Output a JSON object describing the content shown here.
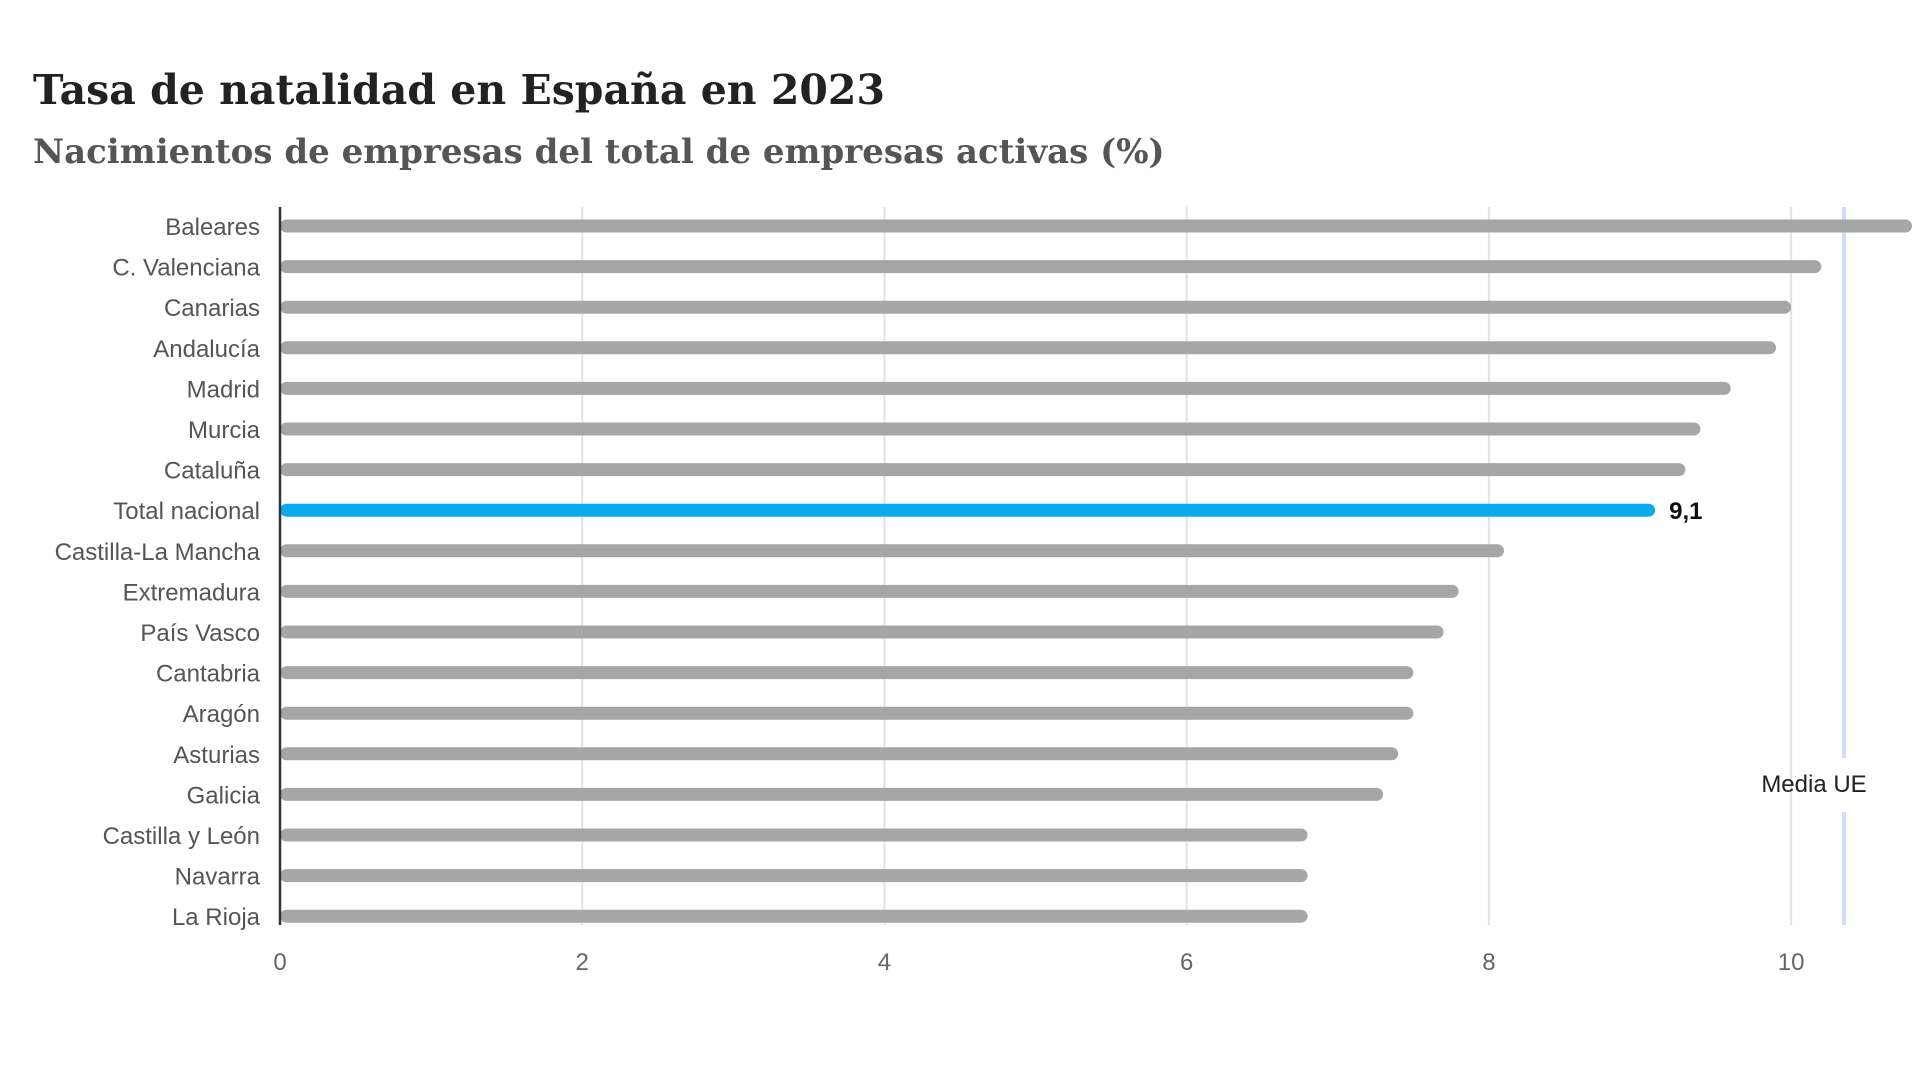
{
  "chart_data": {
    "type": "bar",
    "orientation": "horizontal",
    "title": "Tasa de natalidad en España en 2023",
    "subtitle": "Nacimientos de empresas del total de empresas activas (%)",
    "categories": [
      "Baleares",
      "C. Valenciana",
      "Canarias",
      "Andalucía",
      "Madrid",
      "Murcia",
      "Cataluña",
      "Total nacional",
      "Castilla-La Mancha",
      "Extremadura",
      "País Vasco",
      "Cantabria",
      "Aragón",
      "Asturias",
      "Galicia",
      "Castilla y León",
      "Navarra",
      "La Rioja"
    ],
    "values": [
      10.8,
      10.2,
      10.0,
      9.9,
      9.6,
      9.4,
      9.3,
      9.1,
      8.1,
      7.8,
      7.7,
      7.5,
      7.5,
      7.4,
      7.3,
      6.8,
      6.8,
      6.8
    ],
    "highlight_category": "Total nacional",
    "highlight_value_label": "9,1",
    "xlim": [
      0,
      10.8
    ],
    "xticks": [
      0,
      2,
      4,
      6,
      8,
      10
    ],
    "xtick_labels": [
      "0",
      "2",
      "4",
      "6",
      "8",
      "10"
    ],
    "reference_line": {
      "value": 10.35,
      "label": "Media UE"
    },
    "grid": true,
    "colors": {
      "bar": "#a5a7a6",
      "highlight": "#0aabee",
      "grid": "#e3e3e3",
      "reference": "#d6d9fb",
      "axis": "#333333"
    }
  }
}
